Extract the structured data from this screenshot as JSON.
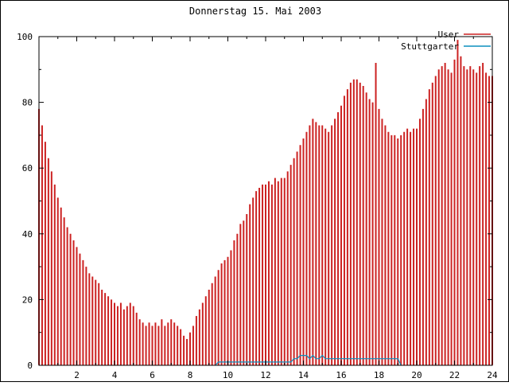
{
  "chart_data": {
    "type": "bar",
    "title": "Donnerstag 15. Mai 2003",
    "xlabel": "",
    "ylabel": "",
    "xlim": [
      0,
      24
    ],
    "ylim": [
      0,
      100
    ],
    "x_ticks": [
      2,
      4,
      6,
      8,
      10,
      12,
      14,
      16,
      18,
      20,
      22,
      24
    ],
    "x_minor_ticks": [
      1,
      3,
      5,
      7,
      9,
      11,
      13,
      15,
      17,
      19,
      21,
      23
    ],
    "y_ticks": [
      0,
      20,
      40,
      60,
      80,
      100
    ],
    "y_minor_ticks": [
      10,
      30,
      50,
      70,
      90
    ],
    "grid": false,
    "legend_position": "top-right",
    "x_interval_hours": 0.1666667,
    "series": [
      {
        "name": "User",
        "style": "impulses",
        "color": "#cc2222",
        "values": [
          78,
          73,
          68,
          63,
          59,
          55,
          51,
          48,
          45,
          42,
          40,
          38,
          36,
          34,
          32,
          30,
          28,
          27,
          26,
          25,
          23,
          22,
          21,
          20,
          19,
          18,
          19,
          17,
          18,
          19,
          18,
          16,
          14,
          13,
          12,
          13,
          12,
          13,
          12,
          14,
          12,
          13,
          14,
          13,
          12,
          11,
          9,
          8,
          10,
          12,
          15,
          17,
          19,
          21,
          23,
          25,
          27,
          29,
          31,
          32,
          33,
          35,
          38,
          40,
          43,
          44,
          46,
          49,
          51,
          53,
          54,
          55,
          55,
          56,
          55,
          57,
          56,
          57,
          57,
          59,
          61,
          63,
          65,
          67,
          69,
          71,
          73,
          75,
          74,
          73,
          73,
          72,
          71,
          73,
          75,
          77,
          79,
          82,
          84,
          86,
          87,
          87,
          86,
          85,
          83,
          81,
          80,
          92,
          78,
          75,
          73,
          71,
          70,
          70,
          69,
          70,
          71,
          72,
          71,
          72,
          72,
          75,
          78,
          81,
          84,
          86,
          88,
          90,
          91,
          92,
          90,
          89,
          93,
          99,
          94,
          91,
          90,
          91,
          90,
          89,
          91,
          92,
          89,
          88,
          88
        ]
      },
      {
        "name": "Stuttgarter",
        "style": "line",
        "color": "#0b8fbf",
        "values": [
          0,
          0,
          0,
          0,
          0,
          0,
          0,
          0,
          0,
          0,
          0,
          0,
          0,
          0,
          0,
          0,
          0,
          0,
          0,
          0,
          0,
          0,
          0,
          0,
          0,
          0,
          0,
          0,
          0,
          0,
          0,
          0,
          0,
          0,
          0,
          0,
          0,
          0,
          0,
          0,
          0,
          0,
          0,
          0,
          0,
          0,
          0,
          0,
          0,
          0,
          0,
          0,
          0,
          0,
          0,
          0,
          0,
          1,
          1,
          1,
          1,
          1,
          1,
          1,
          1,
          1,
          1,
          1,
          1,
          1,
          1,
          1,
          1,
          1,
          1,
          1,
          1,
          1,
          1,
          1,
          1,
          2,
          2,
          3,
          3,
          3,
          2,
          3,
          2,
          2,
          3,
          2,
          2,
          2,
          2,
          2,
          2,
          2,
          2,
          2,
          2,
          2,
          2,
          2,
          2,
          2,
          2,
          2,
          2,
          2,
          2,
          2,
          2,
          2,
          2,
          0,
          0,
          0,
          0,
          0,
          0,
          0,
          0,
          0,
          0,
          0,
          0,
          0,
          0,
          0,
          0,
          0,
          0,
          0,
          0,
          0,
          0,
          0,
          0,
          0,
          0,
          0,
          0,
          0,
          0
        ]
      }
    ]
  }
}
